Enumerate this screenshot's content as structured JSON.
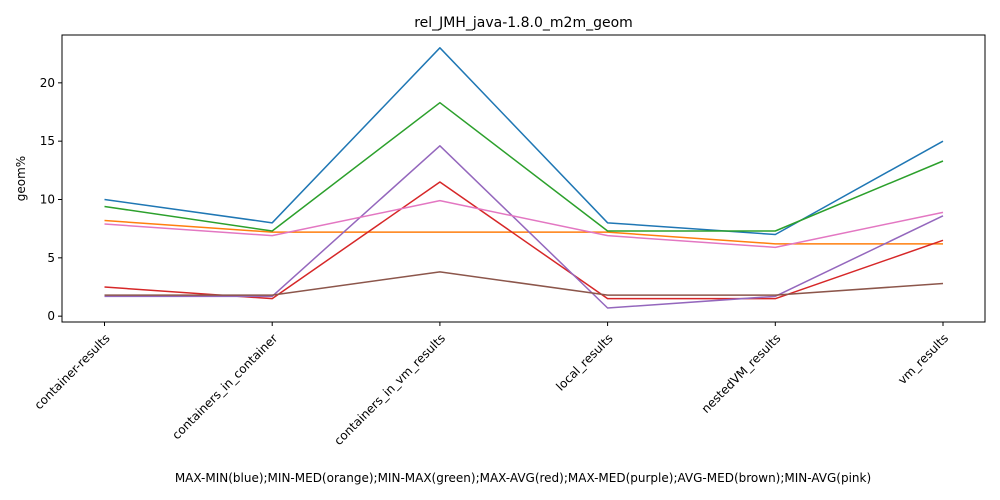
{
  "chart_data": {
    "type": "line",
    "title": "rel_JMH_java-1.8.0_m2m_geom",
    "xlabel": "MAX-MIN(blue);MIN-MED(orange);MIN-MAX(green);MAX-AVG(red);MAX-MED(purple);AVG-MED(brown);MIN-AVG(pink)",
    "ylabel": "geom%",
    "categories": [
      "container-results",
      "containers_in_container",
      "containers_in_vm_results",
      "local_results",
      "nestedVM_results",
      "vm_results"
    ],
    "ylim": [
      -0.5,
      24.1
    ],
    "yticks": [
      0,
      5,
      10,
      15,
      20
    ],
    "grid": false,
    "legend": "none",
    "series": [
      {
        "color": "#1f77b4",
        "values": [
          10.0,
          8.0,
          23.0,
          8.0,
          7.0,
          15.0
        ]
      },
      {
        "color": "#ff7f0e",
        "values": [
          8.2,
          7.2,
          7.2,
          7.2,
          6.2,
          6.2
        ]
      },
      {
        "color": "#2ca02c",
        "values": [
          9.4,
          7.3,
          18.3,
          7.3,
          7.3,
          13.3
        ]
      },
      {
        "color": "#d62728",
        "values": [
          2.5,
          1.5,
          11.5,
          1.5,
          1.5,
          6.5
        ]
      },
      {
        "color": "#9467bd",
        "values": [
          1.7,
          1.7,
          14.6,
          0.7,
          1.7,
          8.6
        ]
      },
      {
        "color": "#8c564b",
        "values": [
          1.8,
          1.8,
          3.8,
          1.8,
          1.8,
          2.8
        ]
      },
      {
        "color": "#e377c2",
        "values": [
          7.9,
          6.9,
          9.9,
          6.9,
          5.9,
          8.9
        ]
      }
    ]
  }
}
